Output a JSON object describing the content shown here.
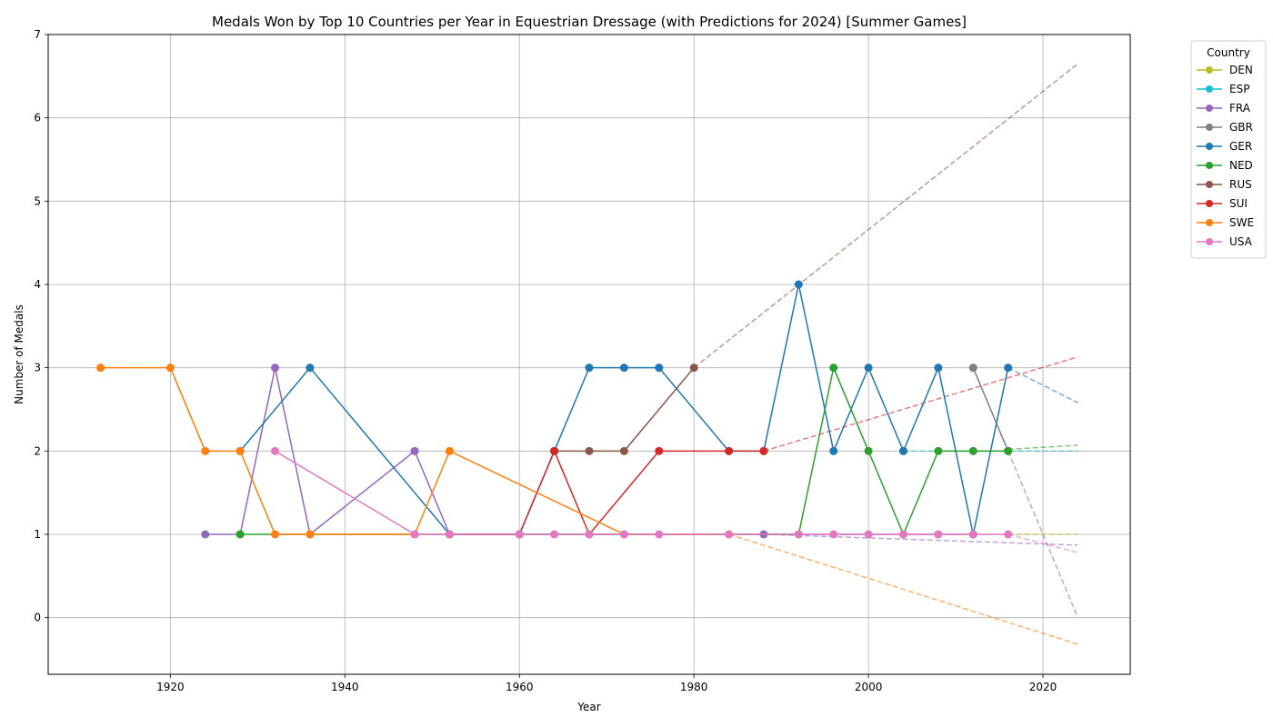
{
  "chart_data": {
    "type": "line",
    "title": "Medals Won by Top 10 Countries per Year in Equestrian Dressage (with Predictions for 2024) [Summer Games]",
    "xlabel": "Year",
    "ylabel": "Number of Medals",
    "xlim": [
      1906,
      2030
    ],
    "ylim": [
      -0.68,
      7
    ],
    "xticks": [
      1920,
      1940,
      1960,
      1980,
      2000,
      2020
    ],
    "yticks": [
      0,
      1,
      2,
      3,
      4,
      5,
      6,
      7
    ],
    "grid": true,
    "legend": {
      "title": "Country",
      "placement": "outside-top-right"
    },
    "series": [
      {
        "name": "DEN",
        "color": "#bcbd22",
        "points": [
          [
            2008,
            1
          ]
        ],
        "prediction": [
          [
            2016,
            1
          ],
          [
            2024,
            1
          ]
        ]
      },
      {
        "name": "ESP",
        "color": "#17becf",
        "points": [
          [
            2004,
            2
          ]
        ],
        "prediction": [
          [
            2004,
            2
          ],
          [
            2024,
            2
          ]
        ]
      },
      {
        "name": "FRA",
        "color": "#9467bd",
        "points": [
          [
            1924,
            1
          ],
          [
            1928,
            1
          ],
          [
            1932,
            3
          ],
          [
            1936,
            1
          ],
          [
            1948,
            2
          ],
          [
            1952,
            1
          ],
          [
            1988,
            1
          ],
          [
            2012,
            1
          ]
        ],
        "prediction": [
          [
            1988,
            1
          ],
          [
            2024,
            0.87
          ]
        ]
      },
      {
        "name": "GBR",
        "color": "#7f7f7f",
        "points": [
          [
            2012,
            3
          ],
          [
            2016,
            2
          ]
        ],
        "prediction": [
          [
            2016,
            2
          ],
          [
            2024,
            0
          ]
        ]
      },
      {
        "name": "GER",
        "color": "#1f77b4",
        "points": [
          [
            1928,
            2
          ],
          [
            1936,
            3
          ],
          [
            1952,
            1
          ],
          [
            1960,
            1
          ],
          [
            1964,
            2
          ],
          [
            1968,
            3
          ],
          [
            1972,
            3
          ],
          [
            1976,
            3
          ],
          [
            1984,
            2
          ],
          [
            1988,
            2
          ],
          [
            1992,
            4
          ],
          [
            1996,
            2
          ],
          [
            2000,
            3
          ],
          [
            2004,
            2
          ],
          [
            2008,
            3
          ],
          [
            2012,
            1
          ],
          [
            2016,
            3
          ]
        ],
        "prediction": [
          [
            2016,
            3
          ],
          [
            2024,
            2.58
          ]
        ]
      },
      {
        "name": "NED",
        "color": "#2ca02c",
        "points": [
          [
            1928,
            1
          ],
          [
            1992,
            1
          ],
          [
            1996,
            3
          ],
          [
            2000,
            2
          ],
          [
            2004,
            1
          ],
          [
            2008,
            2
          ],
          [
            2012,
            2
          ],
          [
            2016,
            2
          ]
        ],
        "prediction": [
          [
            2016,
            2.02
          ],
          [
            2024,
            2.07
          ]
        ]
      },
      {
        "name": "RUS",
        "color": "#8c564b",
        "points": [
          [
            1964,
            2
          ],
          [
            1968,
            2
          ],
          [
            1972,
            2
          ],
          [
            1980,
            3
          ]
        ],
        "prediction": [
          [
            1980,
            3
          ],
          [
            2024,
            6.65
          ]
        ]
      },
      {
        "name": "SUI",
        "color": "#d62728",
        "points": [
          [
            1952,
            1
          ],
          [
            1960,
            1
          ],
          [
            1964,
            2
          ],
          [
            1968,
            1
          ],
          [
            1976,
            2
          ],
          [
            1984,
            2
          ],
          [
            1988,
            2
          ]
        ],
        "prediction": [
          [
            1988,
            2
          ],
          [
            2024,
            3.13
          ]
        ]
      },
      {
        "name": "SWE",
        "color": "#ff7f0e",
        "points": [
          [
            1912,
            3
          ],
          [
            1920,
            3
          ],
          [
            1924,
            2
          ],
          [
            1928,
            2
          ],
          [
            1932,
            1
          ],
          [
            1936,
            1
          ],
          [
            1948,
            1
          ],
          [
            1952,
            2
          ],
          [
            1972,
            1
          ],
          [
            1984,
            1
          ]
        ],
        "prediction": [
          [
            1984,
            1
          ],
          [
            2024,
            -0.32
          ]
        ]
      },
      {
        "name": "USA",
        "color": "#e377c2",
        "points": [
          [
            1932,
            2
          ],
          [
            1948,
            1
          ],
          [
            1952,
            1
          ],
          [
            1960,
            1
          ],
          [
            1964,
            1
          ],
          [
            1968,
            1
          ],
          [
            1972,
            1
          ],
          [
            1976,
            1
          ],
          [
            1984,
            1
          ],
          [
            1992,
            1
          ],
          [
            1996,
            1
          ],
          [
            2000,
            1
          ],
          [
            2004,
            1
          ],
          [
            2008,
            1
          ],
          [
            2012,
            1
          ],
          [
            2016,
            1
          ]
        ],
        "prediction": [
          [
            2016,
            1
          ],
          [
            2024,
            0.78
          ]
        ]
      }
    ]
  }
}
